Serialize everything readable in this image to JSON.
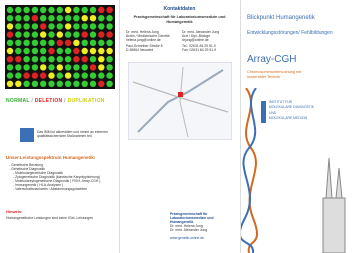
{
  "left": {
    "legend": {
      "normal": "NORMAL",
      "separator": "/",
      "deletion": "DELETION",
      "duplication": "DUPLIKATION"
    },
    "accreditation": "Das IMM ist akkreditiert und nimmt an externen qualitätssichernden Maßnahmen teil.",
    "services_title": "Unser Leistungsspektrum Humangenetik:",
    "services": [
      "- Genetische Beratung",
      "- Genetische Diagnostik",
      "- Molekulargenetische Diagnostik",
      "- Zytogenetische Diagnostik (klassische Karyotypisierung)",
      "- Molekularzytogenetische Diagnostik ( FISH, Array-CGH )",
      "- Immungenetik ( HLA-Analysen )",
      "- Vaterschaftsnachweis / Abstammungsgutachten"
    ],
    "note_title": "Hinweis:",
    "note": "Humangenetische Leistungen sind keine IGeL-Leistungen"
  },
  "middle": {
    "title": "Kontaktdaten",
    "practice": "Praxisgemeinschaft für Laboratoriumsmedizin und Humangenetik",
    "doctors": [
      {
        "name": "Dr. med. Helena Jung",
        "role": "Ärztin / Medizinische Genetik",
        "email": "helena.jung@online.de"
      },
      {
        "name": "Dr. med. Alexander Jung",
        "role": "Arzt / Dipl.-Biologe",
        "email": "drjung@online.de"
      }
    ],
    "address": [
      "Paul-Schreiber-Straße 8",
      "D-56564 Neuwied"
    ],
    "phone": [
      "Tel.: 02631 84 29 51-0",
      "Fax: 02631 84 29 51-9"
    ],
    "footer_practice": "Praxisgemeinschaft für Laboratoriumsmedizin und Humangenetik",
    "footer_names": [
      "Dr. med. Helena Jung",
      "Dr. med. Alexander Jung"
    ],
    "website": "www.genetik-online.de"
  },
  "right": {
    "kicker": "Blickpunkt Humangenetik",
    "subtitle": "Entwicklungsstörungen/ Fehlbildungen",
    "title": "Array-CGH",
    "tagline": "Chromosomenuntersuchung mit modernster Technik",
    "logo": [
      "INSTITUT FÜR",
      "MOLEKULARE DIAGNOSTIK",
      "UND",
      "MOLEKULARE MEDIZIN"
    ]
  }
}
